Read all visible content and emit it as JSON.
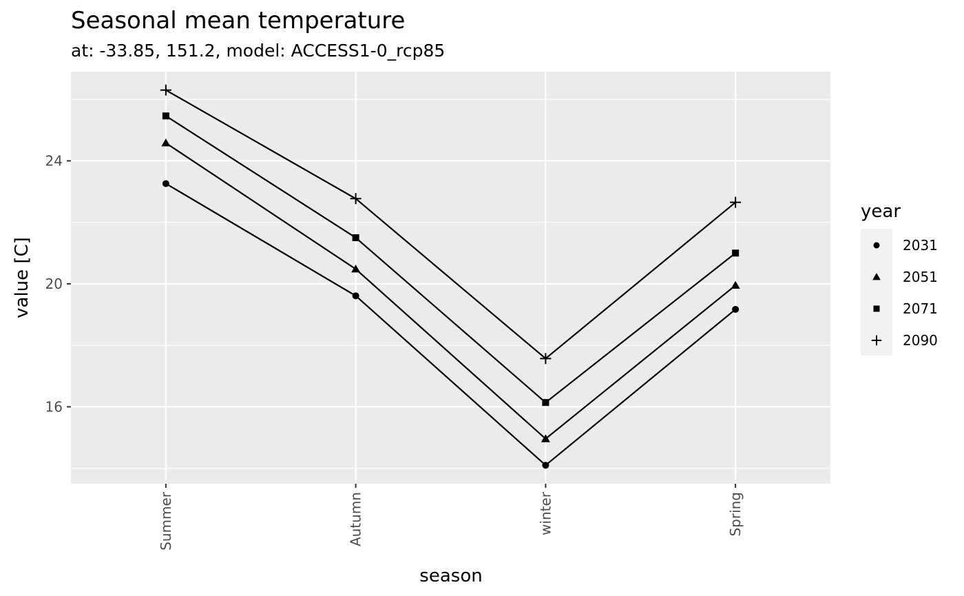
{
  "chart_data": {
    "type": "line",
    "title": "Seasonal mean temperature",
    "subtitle": "at: -33.85, 151.2, model: ACCESS1-0_rcp85",
    "xlabel": "season",
    "ylabel": "value [C]",
    "categories": [
      "Summer",
      "Autumn",
      "winter",
      "Spring"
    ],
    "ylim": [
      13.5,
      26.9
    ],
    "y_ticks": [
      16,
      20,
      24
    ],
    "y_tick_labels": [
      "16",
      "20",
      "24"
    ],
    "y_minor_ticks": [
      14,
      18,
      22,
      26
    ],
    "legend": {
      "title": "year",
      "position": "right"
    },
    "series": [
      {
        "name": "2031",
        "shape": "circle",
        "values": [
          23.26,
          19.61,
          14.1,
          19.17
        ]
      },
      {
        "name": "2051",
        "shape": "triangle",
        "values": [
          24.58,
          20.48,
          14.96,
          19.95
        ]
      },
      {
        "name": "2071",
        "shape": "square",
        "values": [
          25.46,
          21.5,
          16.14,
          21.0
        ]
      },
      {
        "name": "2090",
        "shape": "plus",
        "values": [
          26.3,
          22.77,
          17.57,
          22.65
        ]
      }
    ],
    "colors": {
      "panel": "#ebebeb",
      "grid": "#ffffff",
      "line": "#000000"
    }
  }
}
